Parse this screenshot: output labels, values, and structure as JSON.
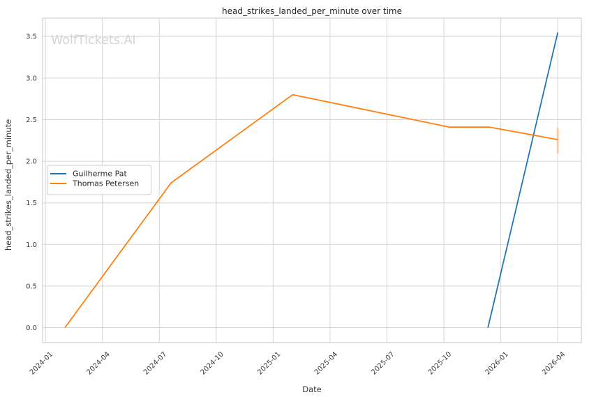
{
  "chart_data": {
    "type": "line",
    "title": "head_strikes_landed_per_minute over time",
    "xlabel": "Date",
    "ylabel": "head_strikes_landed_per_minute",
    "watermark": "WolfTickets.AI",
    "grid": true,
    "legend_position": "center-left",
    "background_color": "#ffffff",
    "grid_color": "#d6d6d6",
    "spine_color": "#c6c6c6",
    "xlim_months": [
      -0.15,
      28.24
    ],
    "ylim": [
      -0.18,
      3.72
    ],
    "x_ticks": [
      {
        "months": 0,
        "label": "2024-01"
      },
      {
        "months": 3,
        "label": "2024-04"
      },
      {
        "months": 6,
        "label": "2024-07"
      },
      {
        "months": 9,
        "label": "2024-10"
      },
      {
        "months": 12,
        "label": "2025-01"
      },
      {
        "months": 15,
        "label": "2025-04"
      },
      {
        "months": 18,
        "label": "2025-07"
      },
      {
        "months": 21,
        "label": "2025-10"
      },
      {
        "months": 24,
        "label": "2026-01"
      },
      {
        "months": 27,
        "label": "2026-04"
      }
    ],
    "y_ticks": [
      {
        "value": 0.0,
        "label": "0.0"
      },
      {
        "value": 0.5,
        "label": "0.5"
      },
      {
        "value": 1.0,
        "label": "1.0"
      },
      {
        "value": 1.5,
        "label": "1.5"
      },
      {
        "value": 2.0,
        "label": "2.0"
      },
      {
        "value": 2.5,
        "label": "2.5"
      },
      {
        "value": 3.0,
        "label": "3.0"
      },
      {
        "value": 3.5,
        "label": "3.5"
      }
    ],
    "series": [
      {
        "name": "Guilherme Pat",
        "color": "#1f77b4",
        "points": [
          {
            "date": "2025-12",
            "months": 23.32,
            "value": 0.0
          },
          {
            "date": "2026-04",
            "months": 27.0,
            "value": 3.55
          }
        ]
      },
      {
        "name": "Thomas Petersen",
        "color": "#ff7f0e",
        "points": [
          {
            "date": "2024-02",
            "months": 1.03,
            "value": 0.0
          },
          {
            "date": "2024-07",
            "months": 6.62,
            "value": 1.74
          },
          {
            "date": "2025-02",
            "months": 13.03,
            "value": 2.8
          },
          {
            "date": "2025-10",
            "months": 21.3,
            "value": 2.41
          },
          {
            "date": "2025-12",
            "months": 23.41,
            "value": 2.41
          },
          {
            "date": "2026-04",
            "months": 27.0,
            "value": 2.26
          }
        ],
        "end_marker": {
          "months": 27.0,
          "value_low": 2.09,
          "value_high": 2.4,
          "opacity": 0.3
        }
      }
    ]
  }
}
